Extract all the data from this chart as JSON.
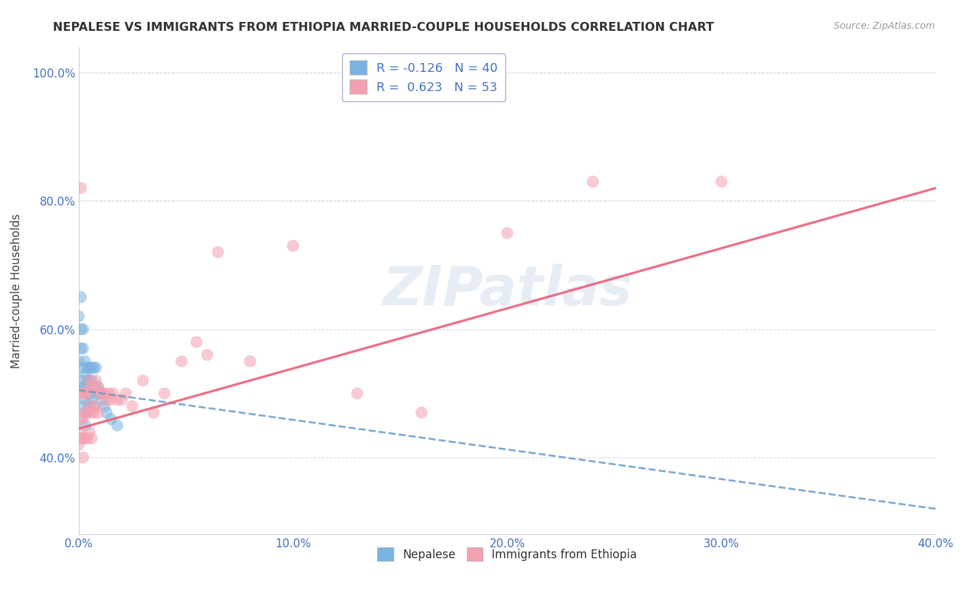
{
  "title": "NEPALESE VS IMMIGRANTS FROM ETHIOPIA MARRIED-COUPLE HOUSEHOLDS CORRELATION CHART",
  "source": "Source: ZipAtlas.com",
  "ylabel": "Married-couple Households",
  "xlabel": "",
  "legend_label1": "Nepalese",
  "legend_label2": "Immigrants from Ethiopia",
  "R1": -0.126,
  "N1": 40,
  "R2": 0.623,
  "N2": 53,
  "color1": "#7ab3e0",
  "color2": "#f4a0b0",
  "line_color1": "#6699cc",
  "line_color2": "#e8607a",
  "xlim": [
    0.0,
    0.4
  ],
  "ylim": [
    0.28,
    1.04
  ],
  "xticks": [
    0.0,
    0.1,
    0.2,
    0.3,
    0.4
  ],
  "yticks": [
    0.4,
    0.6,
    0.8,
    1.0
  ],
  "watermark": "ZIPatlas",
  "nepalese_line": [
    0.505,
    0.32
  ],
  "ethiopia_line": [
    0.445,
    0.82
  ],
  "nepalese_x": [
    0.0,
    0.0,
    0.001,
    0.001,
    0.001,
    0.001,
    0.002,
    0.002,
    0.002,
    0.002,
    0.002,
    0.003,
    0.003,
    0.003,
    0.003,
    0.003,
    0.003,
    0.004,
    0.004,
    0.004,
    0.004,
    0.005,
    0.005,
    0.005,
    0.005,
    0.006,
    0.006,
    0.006,
    0.007,
    0.007,
    0.007,
    0.008,
    0.008,
    0.009,
    0.01,
    0.011,
    0.012,
    0.013,
    0.015,
    0.018
  ],
  "nepalese_y": [
    0.62,
    0.55,
    0.65,
    0.6,
    0.57,
    0.52,
    0.6,
    0.57,
    0.54,
    0.51,
    0.48,
    0.55,
    0.53,
    0.51,
    0.49,
    0.47,
    0.45,
    0.54,
    0.52,
    0.5,
    0.47,
    0.54,
    0.52,
    0.5,
    0.48,
    0.54,
    0.52,
    0.49,
    0.54,
    0.51,
    0.48,
    0.54,
    0.5,
    0.51,
    0.5,
    0.49,
    0.48,
    0.47,
    0.46,
    0.45
  ],
  "ethiopia_x": [
    0.0,
    0.0,
    0.001,
    0.001,
    0.001,
    0.001,
    0.002,
    0.002,
    0.002,
    0.002,
    0.003,
    0.003,
    0.003,
    0.004,
    0.004,
    0.004,
    0.005,
    0.005,
    0.005,
    0.006,
    0.006,
    0.006,
    0.007,
    0.007,
    0.008,
    0.008,
    0.009,
    0.009,
    0.01,
    0.011,
    0.012,
    0.013,
    0.014,
    0.015,
    0.016,
    0.018,
    0.02,
    0.022,
    0.025,
    0.03,
    0.035,
    0.04,
    0.048,
    0.055,
    0.06,
    0.065,
    0.08,
    0.1,
    0.13,
    0.16,
    0.2,
    0.24,
    0.3
  ],
  "ethiopia_y": [
    0.44,
    0.42,
    0.82,
    0.5,
    0.46,
    0.43,
    0.5,
    0.46,
    0.43,
    0.4,
    0.5,
    0.47,
    0.43,
    0.5,
    0.47,
    0.43,
    0.52,
    0.48,
    0.44,
    0.51,
    0.47,
    0.43,
    0.51,
    0.47,
    0.52,
    0.48,
    0.51,
    0.47,
    0.5,
    0.5,
    0.5,
    0.49,
    0.5,
    0.49,
    0.5,
    0.49,
    0.49,
    0.5,
    0.48,
    0.52,
    0.47,
    0.5,
    0.55,
    0.58,
    0.56,
    0.72,
    0.55,
    0.73,
    0.5,
    0.47,
    0.75,
    0.83,
    0.83
  ]
}
